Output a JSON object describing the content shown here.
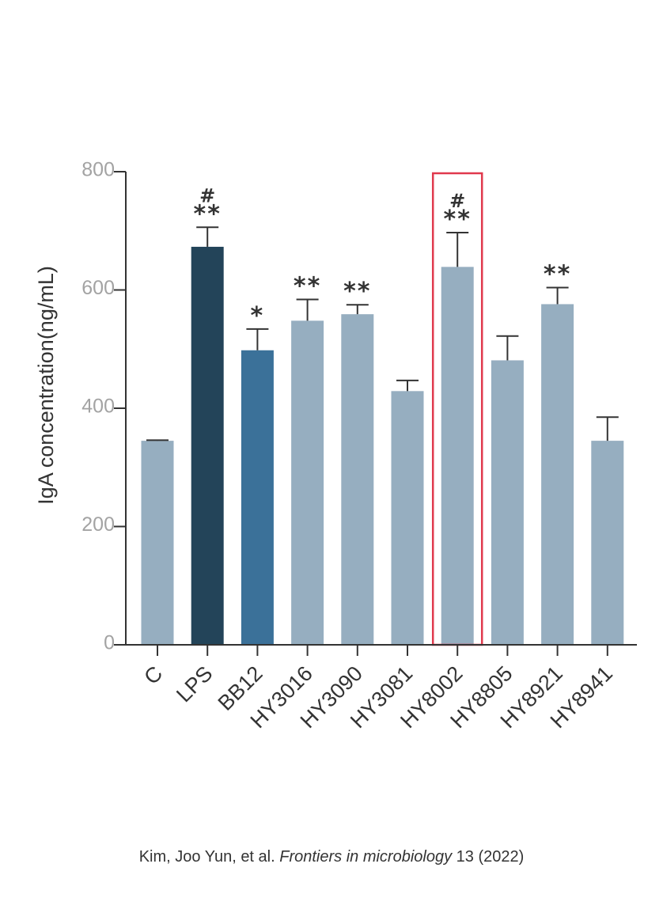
{
  "chart_data": {
    "type": "bar",
    "ylabel": "IgA concentration(ng/mL)",
    "xlabel": "",
    "ylim": [
      0,
      800
    ],
    "yticks": [
      0,
      200,
      400,
      600,
      800
    ],
    "categories": [
      "C",
      "LPS",
      "BB12",
      "HY3016",
      "HY3090",
      "HY3081",
      "HY8002",
      "HY8805",
      "HY8921",
      "HY8941"
    ],
    "values": [
      345,
      673,
      498,
      548,
      559,
      429,
      639,
      481,
      576,
      345
    ],
    "errors": [
      1,
      33,
      36,
      36,
      16,
      18,
      58,
      41,
      28,
      40
    ],
    "significance": [
      "",
      "**",
      "*",
      "**",
      "**",
      "",
      "**",
      "",
      "**",
      ""
    ],
    "hash_marks": [
      "",
      "#",
      "",
      "",
      "",
      "",
      "#",
      "",
      "",
      ""
    ],
    "bar_colors": [
      "#96aec0",
      "#234459",
      "#3b7199",
      "#96aec0",
      "#96aec0",
      "#96aec0",
      "#96aec0",
      "#96aec0",
      "#96aec0",
      "#96aec0"
    ],
    "highlighted_category": "HY8002",
    "highlight_color": "#e0394d"
  },
  "citation": {
    "authors": "Kim, Joo Yun, et al.",
    "journal": "Frontiers in microbiology",
    "volume_year": "13 (2022)"
  }
}
